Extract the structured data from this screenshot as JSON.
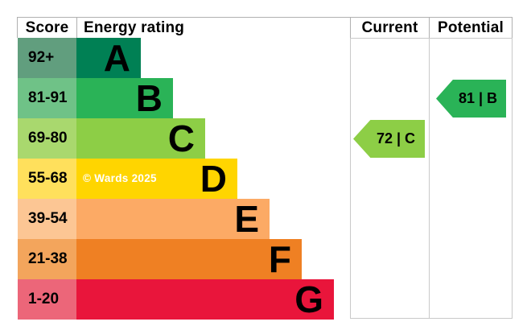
{
  "chart_data": {
    "type": "bar",
    "columns": {
      "score": "Score",
      "energy_rating": "Energy rating",
      "current": "Current",
      "potential": "Potential"
    },
    "bands": [
      {
        "letter": "A",
        "score_range": "92+",
        "bar_color": "#008054",
        "score_cell_color": "#619e7e"
      },
      {
        "letter": "B",
        "score_range": "81-91",
        "bar_color": "#2ab357",
        "score_cell_color": "#6fc287"
      },
      {
        "letter": "C",
        "score_range": "69-80",
        "bar_color": "#8dce46",
        "score_cell_color": "#a9d86e"
      },
      {
        "letter": "D",
        "score_range": "55-68",
        "bar_color": "#ffd500",
        "score_cell_color": "#ffe05c"
      },
      {
        "letter": "E",
        "score_range": "39-54",
        "bar_color": "#fcaa65",
        "score_cell_color": "#fcc694"
      },
      {
        "letter": "F",
        "score_range": "21-38",
        "bar_color": "#ef8023",
        "score_cell_color": "#f3a55c"
      },
      {
        "letter": "G",
        "score_range": "1-20",
        "bar_color": "#e9153b",
        "score_cell_color": "#ec6679"
      }
    ],
    "current": {
      "score": 72,
      "band": "C",
      "label": "72 | C",
      "color": "#8dce46"
    },
    "potential": {
      "score": 81,
      "band": "B",
      "label": "81 | B",
      "color": "#2ab357"
    },
    "watermark": "© Wards 2025"
  }
}
